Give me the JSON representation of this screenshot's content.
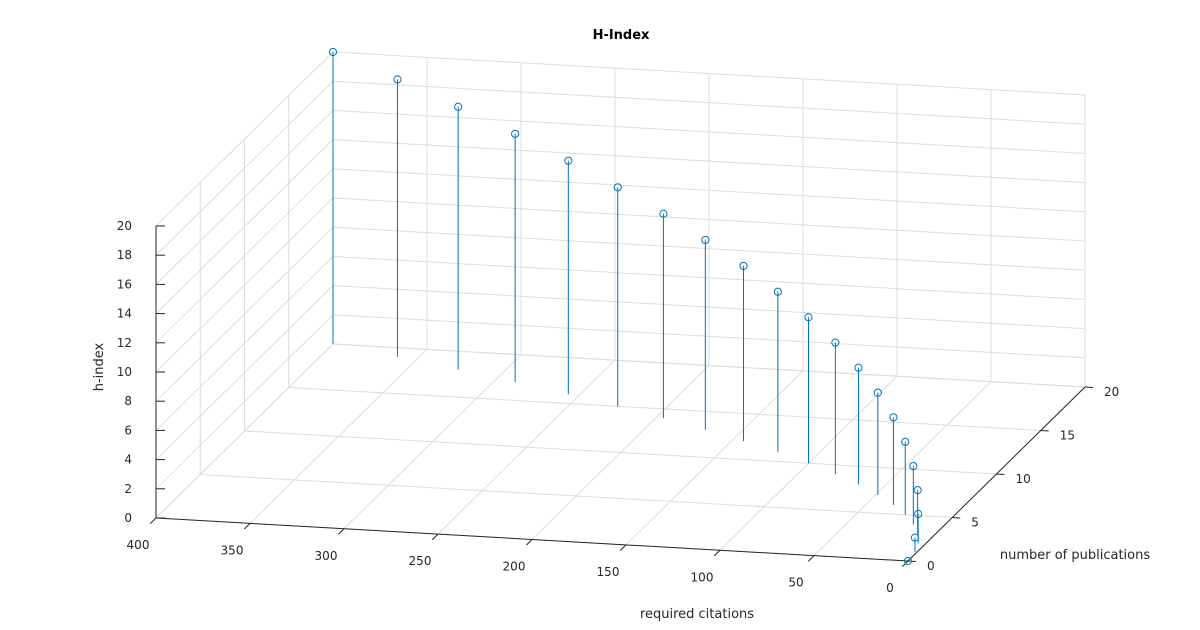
{
  "chart_data": {
    "type": "stem3",
    "title": "H-Index",
    "xlabel": "required citations",
    "ylabel": "number of publications",
    "zlabel": "h-index",
    "xlim": [
      0,
      400
    ],
    "ylim": [
      0,
      20
    ],
    "zlim": [
      0,
      20
    ],
    "xticks": [
      "0",
      "50",
      "100",
      "150",
      "200",
      "250",
      "300",
      "350",
      "400"
    ],
    "yticks": [
      "0",
      "5",
      "10",
      "15",
      "20"
    ],
    "zticks": [
      "0",
      "2",
      "4",
      "6",
      "8",
      "10",
      "12",
      "14",
      "16",
      "18",
      "20"
    ],
    "grid": true,
    "series": [
      {
        "color": "#0072bd",
        "points": [
          {
            "x": 0,
            "y": 0,
            "z": 0
          },
          {
            "x": 1,
            "y": 1,
            "z": 1
          },
          {
            "x": 4,
            "y": 2,
            "z": 2
          },
          {
            "x": 9,
            "y": 3,
            "z": 3
          },
          {
            "x": 16,
            "y": 4,
            "z": 4
          },
          {
            "x": 25,
            "y": 5,
            "z": 5
          },
          {
            "x": 36,
            "y": 6,
            "z": 6
          },
          {
            "x": 49,
            "y": 7,
            "z": 7
          },
          {
            "x": 64,
            "y": 8,
            "z": 8
          },
          {
            "x": 81,
            "y": 9,
            "z": 9
          },
          {
            "x": 100,
            "y": 10,
            "z": 10
          },
          {
            "x": 121,
            "y": 11,
            "z": 11
          },
          {
            "x": 144,
            "y": 12,
            "z": 12
          },
          {
            "x": 169,
            "y": 13,
            "z": 13
          },
          {
            "x": 196,
            "y": 14,
            "z": 14
          },
          {
            "x": 225,
            "y": 15,
            "z": 15
          },
          {
            "x": 256,
            "y": 16,
            "z": 16
          },
          {
            "x": 289,
            "y": 17,
            "z": 17
          },
          {
            "x": 324,
            "y": 18,
            "z": 18
          },
          {
            "x": 361,
            "y": 19,
            "z": 19
          },
          {
            "x": 400,
            "y": 20,
            "z": 20
          }
        ]
      }
    ]
  }
}
